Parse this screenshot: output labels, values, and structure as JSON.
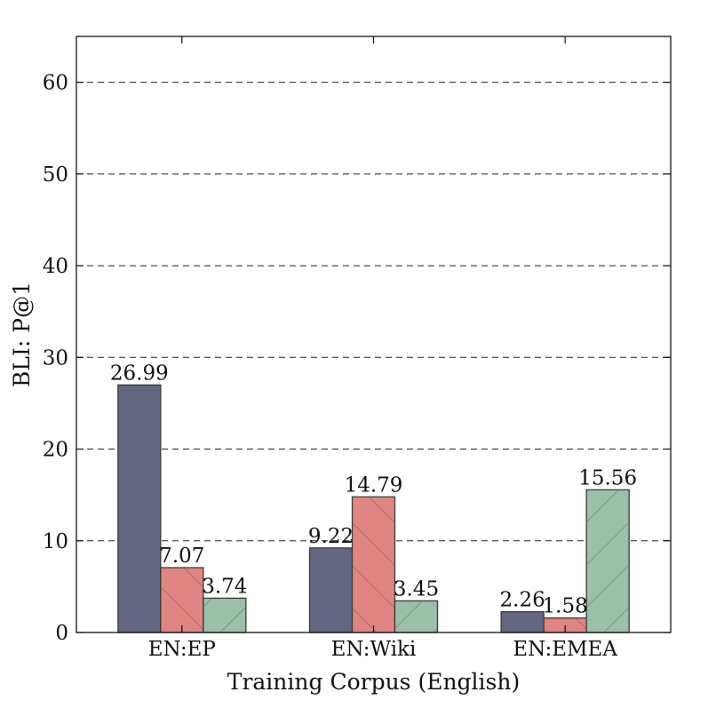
{
  "chart_data": {
    "type": "bar",
    "title": "",
    "xlabel": "Training Corpus (English)",
    "ylabel": "BLI: P@1",
    "categories": [
      "EN:EP",
      "EN:Wiki",
      "EN:EMEA"
    ],
    "series": [
      {
        "values": [
          26.99,
          9.22,
          2.26
        ],
        "color": "#626681",
        "hatch": "none"
      },
      {
        "values": [
          7.07,
          14.79,
          1.58
        ],
        "color": "#e08581",
        "hatch": "backslash"
      },
      {
        "values": [
          3.74,
          3.45,
          15.56
        ],
        "color": "#9bbfa7",
        "hatch": "slash"
      }
    ],
    "value_labels": [
      [
        "26.99",
        "9.22",
        "2.26"
      ],
      [
        "7.07",
        "14.79",
        "1.58"
      ],
      [
        "3.74",
        "3.45",
        "15.56"
      ]
    ],
    "ylim": [
      0,
      65
    ],
    "yticks": [
      0,
      10,
      20,
      30,
      40,
      50,
      60
    ],
    "ytick_labels": [
      "0",
      "10",
      "20",
      "30",
      "40",
      "50",
      "60"
    ],
    "grid": "horizontal-dashed",
    "legend": "none"
  }
}
